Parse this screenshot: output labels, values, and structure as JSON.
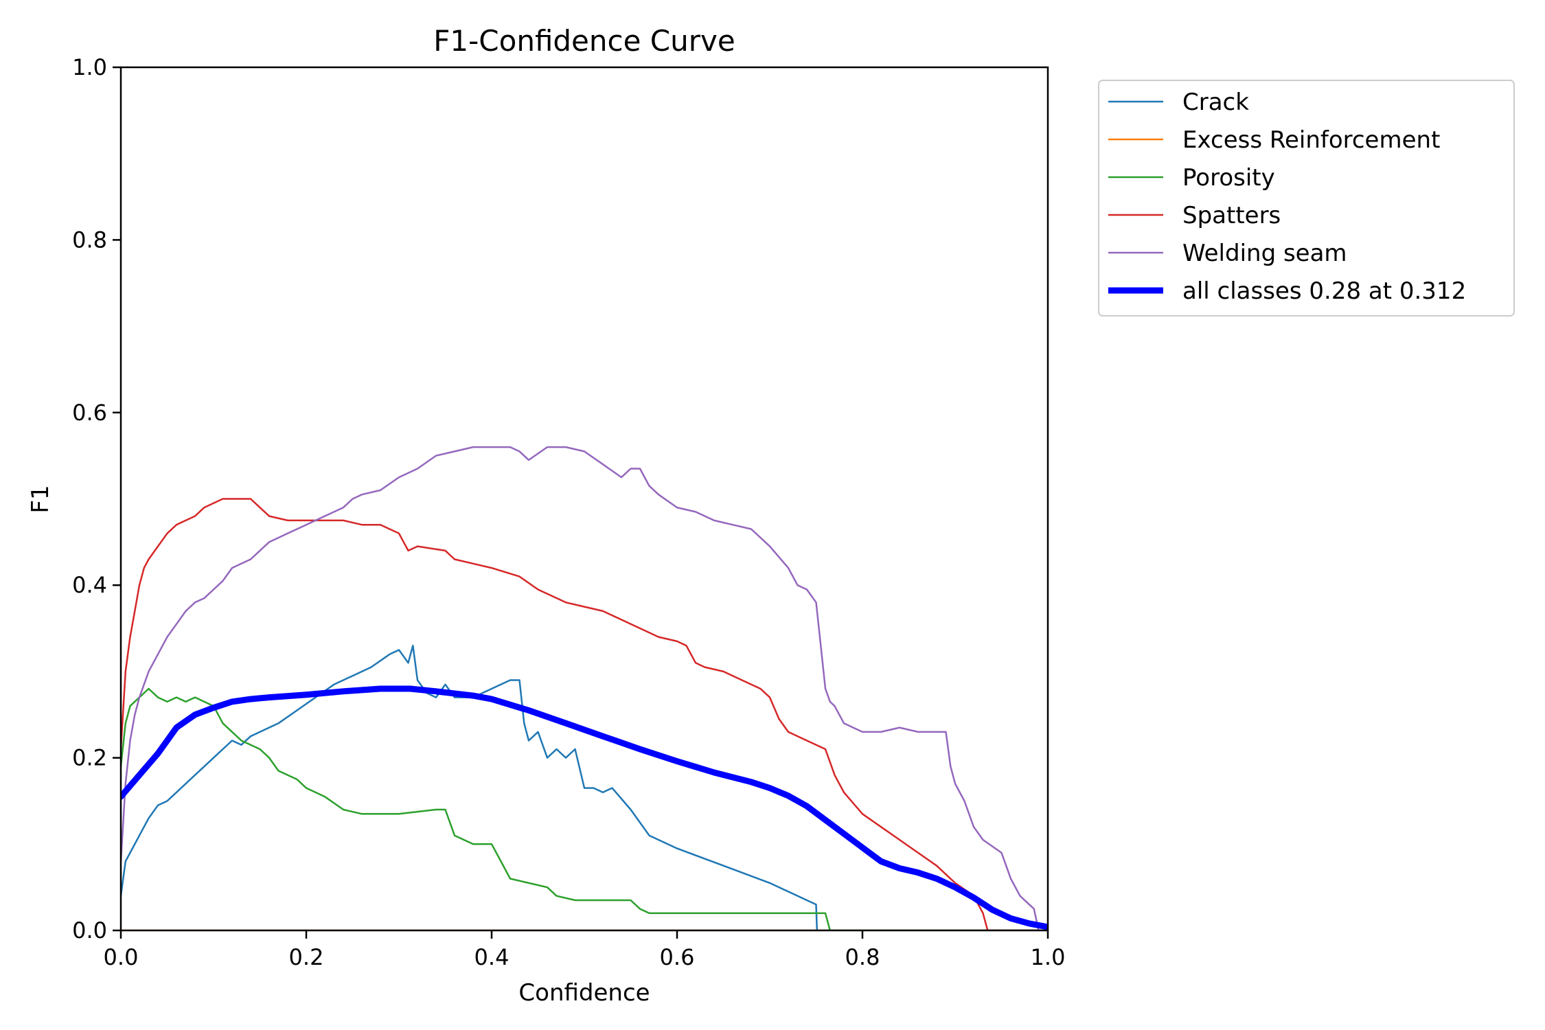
{
  "chart_data": {
    "type": "line",
    "title": "F1-Confidence Curve",
    "xlabel": "Confidence",
    "ylabel": "F1",
    "xlim": [
      0,
      1
    ],
    "ylim": [
      0,
      1
    ],
    "xticks": [
      "0.0",
      "0.2",
      "0.4",
      "0.6",
      "0.8",
      "1.0"
    ],
    "yticks": [
      "0.0",
      "0.2",
      "0.4",
      "0.6",
      "0.8",
      "1.0"
    ],
    "grid": false,
    "legend_position": "outside-upper-right",
    "series": [
      {
        "name": "Crack",
        "color": "#1f77b4",
        "x": [
          0.0,
          0.005,
          0.01,
          0.02,
          0.03,
          0.04,
          0.05,
          0.06,
          0.07,
          0.08,
          0.09,
          0.1,
          0.11,
          0.12,
          0.13,
          0.14,
          0.15,
          0.17,
          0.19,
          0.21,
          0.23,
          0.25,
          0.27,
          0.29,
          0.3,
          0.31,
          0.315,
          0.32,
          0.33,
          0.34,
          0.35,
          0.36,
          0.38,
          0.4,
          0.42,
          0.43,
          0.435,
          0.44,
          0.45,
          0.46,
          0.47,
          0.48,
          0.49,
          0.5,
          0.51,
          0.52,
          0.53,
          0.55,
          0.57,
          0.6,
          0.65,
          0.7,
          0.75,
          0.751,
          1.0
        ],
        "y": [
          0.04,
          0.08,
          0.09,
          0.11,
          0.13,
          0.145,
          0.15,
          0.16,
          0.17,
          0.18,
          0.19,
          0.2,
          0.21,
          0.22,
          0.215,
          0.225,
          0.23,
          0.24,
          0.255,
          0.27,
          0.285,
          0.295,
          0.305,
          0.32,
          0.325,
          0.31,
          0.33,
          0.29,
          0.275,
          0.27,
          0.285,
          0.27,
          0.27,
          0.28,
          0.29,
          0.29,
          0.24,
          0.22,
          0.23,
          0.2,
          0.21,
          0.2,
          0.21,
          0.165,
          0.165,
          0.16,
          0.165,
          0.14,
          0.11,
          0.095,
          0.075,
          0.055,
          0.03,
          0.0,
          0.0
        ]
      },
      {
        "name": "Excess Reinforcement",
        "color": "#ff7f0e",
        "x": [
          0.0,
          1.0
        ],
        "y": [
          0.0,
          0.0
        ]
      },
      {
        "name": "Porosity",
        "color": "#2ca02c",
        "x": [
          0.0,
          0.005,
          0.01,
          0.02,
          0.03,
          0.04,
          0.05,
          0.06,
          0.07,
          0.08,
          0.09,
          0.1,
          0.11,
          0.12,
          0.13,
          0.14,
          0.15,
          0.16,
          0.17,
          0.18,
          0.19,
          0.2,
          0.21,
          0.22,
          0.24,
          0.26,
          0.3,
          0.34,
          0.35,
          0.36,
          0.37,
          0.38,
          0.4,
          0.41,
          0.42,
          0.44,
          0.46,
          0.47,
          0.49,
          0.55,
          0.56,
          0.57,
          0.6,
          0.7,
          0.76,
          0.765,
          1.0
        ],
        "y": [
          0.19,
          0.24,
          0.26,
          0.27,
          0.28,
          0.27,
          0.265,
          0.27,
          0.265,
          0.27,
          0.265,
          0.26,
          0.24,
          0.23,
          0.22,
          0.215,
          0.21,
          0.2,
          0.185,
          0.18,
          0.175,
          0.165,
          0.16,
          0.155,
          0.14,
          0.135,
          0.135,
          0.14,
          0.14,
          0.11,
          0.105,
          0.1,
          0.1,
          0.08,
          0.06,
          0.055,
          0.05,
          0.04,
          0.035,
          0.035,
          0.025,
          0.02,
          0.02,
          0.02,
          0.02,
          0.0,
          0.0
        ]
      },
      {
        "name": "Spatters",
        "color": "#d62728",
        "x": [
          0.0,
          0.005,
          0.01,
          0.015,
          0.02,
          0.025,
          0.03,
          0.04,
          0.05,
          0.06,
          0.07,
          0.08,
          0.09,
          0.1,
          0.11,
          0.12,
          0.13,
          0.14,
          0.15,
          0.16,
          0.18,
          0.2,
          0.22,
          0.24,
          0.26,
          0.28,
          0.3,
          0.31,
          0.32,
          0.35,
          0.36,
          0.38,
          0.4,
          0.43,
          0.45,
          0.46,
          0.48,
          0.5,
          0.52,
          0.55,
          0.56,
          0.58,
          0.6,
          0.61,
          0.62,
          0.63,
          0.65,
          0.67,
          0.69,
          0.7,
          0.71,
          0.72,
          0.74,
          0.76,
          0.77,
          0.78,
          0.8,
          0.82,
          0.84,
          0.86,
          0.88,
          0.9,
          0.92,
          0.93,
          0.935,
          1.0
        ],
        "y": [
          0.21,
          0.3,
          0.34,
          0.37,
          0.4,
          0.42,
          0.43,
          0.445,
          0.46,
          0.47,
          0.475,
          0.48,
          0.49,
          0.495,
          0.5,
          0.5,
          0.5,
          0.5,
          0.49,
          0.48,
          0.475,
          0.475,
          0.475,
          0.475,
          0.47,
          0.47,
          0.46,
          0.44,
          0.445,
          0.44,
          0.43,
          0.425,
          0.42,
          0.41,
          0.395,
          0.39,
          0.38,
          0.375,
          0.37,
          0.355,
          0.35,
          0.34,
          0.335,
          0.33,
          0.31,
          0.305,
          0.3,
          0.29,
          0.28,
          0.27,
          0.245,
          0.23,
          0.22,
          0.21,
          0.18,
          0.16,
          0.135,
          0.12,
          0.105,
          0.09,
          0.075,
          0.055,
          0.04,
          0.02,
          0.0,
          0.0
        ]
      },
      {
        "name": "Welding seam",
        "color": "#9467bd",
        "x": [
          0.0,
          0.005,
          0.01,
          0.015,
          0.02,
          0.03,
          0.04,
          0.05,
          0.06,
          0.07,
          0.08,
          0.09,
          0.1,
          0.11,
          0.12,
          0.13,
          0.14,
          0.15,
          0.16,
          0.17,
          0.18,
          0.2,
          0.22,
          0.24,
          0.25,
          0.26,
          0.28,
          0.3,
          0.32,
          0.34,
          0.36,
          0.38,
          0.4,
          0.42,
          0.43,
          0.44,
          0.46,
          0.48,
          0.5,
          0.52,
          0.54,
          0.55,
          0.56,
          0.57,
          0.58,
          0.6,
          0.62,
          0.64,
          0.66,
          0.68,
          0.7,
          0.72,
          0.73,
          0.74,
          0.75,
          0.755,
          0.76,
          0.765,
          0.77,
          0.78,
          0.79,
          0.8,
          0.82,
          0.84,
          0.86,
          0.88,
          0.89,
          0.895,
          0.9,
          0.91,
          0.92,
          0.93,
          0.95,
          0.96,
          0.97,
          0.98,
          0.985,
          0.99,
          1.0
        ],
        "y": [
          0.08,
          0.17,
          0.22,
          0.25,
          0.27,
          0.3,
          0.32,
          0.34,
          0.355,
          0.37,
          0.38,
          0.385,
          0.395,
          0.405,
          0.42,
          0.425,
          0.43,
          0.44,
          0.45,
          0.455,
          0.46,
          0.47,
          0.48,
          0.49,
          0.5,
          0.505,
          0.51,
          0.525,
          0.535,
          0.55,
          0.555,
          0.56,
          0.56,
          0.56,
          0.555,
          0.545,
          0.56,
          0.56,
          0.555,
          0.54,
          0.525,
          0.535,
          0.535,
          0.515,
          0.505,
          0.49,
          0.485,
          0.475,
          0.47,
          0.465,
          0.445,
          0.42,
          0.4,
          0.395,
          0.38,
          0.33,
          0.28,
          0.265,
          0.26,
          0.24,
          0.235,
          0.23,
          0.23,
          0.235,
          0.23,
          0.23,
          0.23,
          0.19,
          0.17,
          0.15,
          0.12,
          0.105,
          0.09,
          0.06,
          0.04,
          0.03,
          0.025,
          0.0,
          0.0
        ]
      },
      {
        "name": "all classes 0.28 at 0.312",
        "color": "#0000ff",
        "x": [
          0.0,
          0.02,
          0.04,
          0.05,
          0.06,
          0.08,
          0.1,
          0.12,
          0.14,
          0.16,
          0.2,
          0.24,
          0.28,
          0.312,
          0.34,
          0.38,
          0.4,
          0.44,
          0.48,
          0.52,
          0.56,
          0.6,
          0.64,
          0.68,
          0.7,
          0.72,
          0.74,
          0.76,
          0.78,
          0.8,
          0.82,
          0.84,
          0.86,
          0.88,
          0.9,
          0.92,
          0.94,
          0.96,
          0.98,
          1.0
        ],
        "y": [
          0.155,
          0.18,
          0.205,
          0.22,
          0.235,
          0.25,
          0.258,
          0.265,
          0.268,
          0.27,
          0.273,
          0.277,
          0.28,
          0.28,
          0.277,
          0.272,
          0.268,
          0.255,
          0.24,
          0.225,
          0.21,
          0.196,
          0.183,
          0.172,
          0.165,
          0.156,
          0.144,
          0.128,
          0.112,
          0.096,
          0.08,
          0.072,
          0.067,
          0.06,
          0.05,
          0.038,
          0.024,
          0.014,
          0.008,
          0.004
        ],
        "bold": true
      }
    ]
  }
}
